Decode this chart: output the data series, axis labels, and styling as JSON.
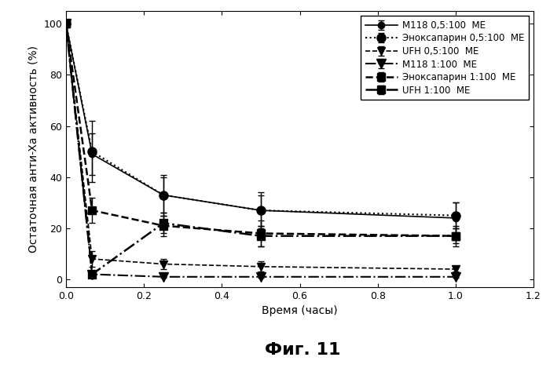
{
  "title": "Фиг. 11",
  "xlabel": "Время (часы)",
  "ylabel": "Остаточная анти-Xa активность (%)",
  "xlim": [
    0,
    1.2
  ],
  "ylim": [
    -3,
    105
  ],
  "xticks": [
    0.0,
    0.2,
    0.4,
    0.6,
    0.8,
    1.0,
    1.2
  ],
  "yticks": [
    0,
    20,
    40,
    60,
    80,
    100
  ],
  "series": [
    {
      "label": "М118 0,5:100  МЕ",
      "x": [
        0.0,
        0.067,
        0.25,
        0.5,
        1.0
      ],
      "y": [
        100,
        49,
        33,
        27,
        24
      ],
      "yerr": [
        0,
        8,
        7,
        6,
        6
      ],
      "linestyle": "-",
      "marker": "o",
      "markersize": 6,
      "color": "black",
      "linewidth": 1.2
    },
    {
      "label": "Эноксапарин 0,5:100  МЕ",
      "x": [
        0.0,
        0.067,
        0.25,
        0.5,
        1.0
      ],
      "y": [
        100,
        50,
        33,
        27,
        25
      ],
      "yerr": [
        0,
        12,
        8,
        7,
        5
      ],
      "linestyle": ":",
      "marker": "o",
      "markersize": 8,
      "color": "black",
      "linewidth": 1.5
    },
    {
      "label": "UFH 0,5:100  МЕ",
      "x": [
        0.0,
        0.067,
        0.25,
        0.5,
        1.0
      ],
      "y": [
        100,
        8,
        6,
        5,
        4
      ],
      "yerr": [
        0,
        3,
        2,
        2,
        1
      ],
      "linestyle": "--",
      "marker": "v",
      "markersize": 7,
      "color": "black",
      "linewidth": 1.2
    },
    {
      "label": "М118 1:100  МЕ",
      "x": [
        0.0,
        0.067,
        0.25,
        0.5,
        1.0
      ],
      "y": [
        100,
        2,
        1,
        1,
        1
      ],
      "yerr": [
        0,
        1,
        0.5,
        0.5,
        0.5
      ],
      "linestyle": "-.",
      "marker": "v",
      "markersize": 8,
      "color": "black",
      "linewidth": 1.5
    },
    {
      "label": "Эноксапарин 1:100  МЕ",
      "x": [
        0.0,
        0.067,
        0.25,
        0.5,
        1.0
      ],
      "y": [
        100,
        27,
        21,
        18,
        17
      ],
      "yerr": [
        0,
        5,
        4,
        5,
        4
      ],
      "linestyle": "--",
      "marker": "s",
      "markersize": 7,
      "color": "black",
      "linewidth": 1.8
    },
    {
      "label": "UFH 1:100  МЕ",
      "x": [
        0.0,
        0.067,
        0.25,
        0.5,
        1.0
      ],
      "y": [
        100,
        2,
        22,
        17,
        17
      ],
      "yerr": [
        0,
        1,
        4,
        4,
        3
      ],
      "linestyle": "-.",
      "marker": "s",
      "markersize": 7,
      "color": "black",
      "linewidth": 1.8
    }
  ],
  "background_color": "#ffffff",
  "legend_fontsize": 8.5,
  "axis_fontsize": 10,
  "tick_fontsize": 9,
  "title_fontsize": 16
}
